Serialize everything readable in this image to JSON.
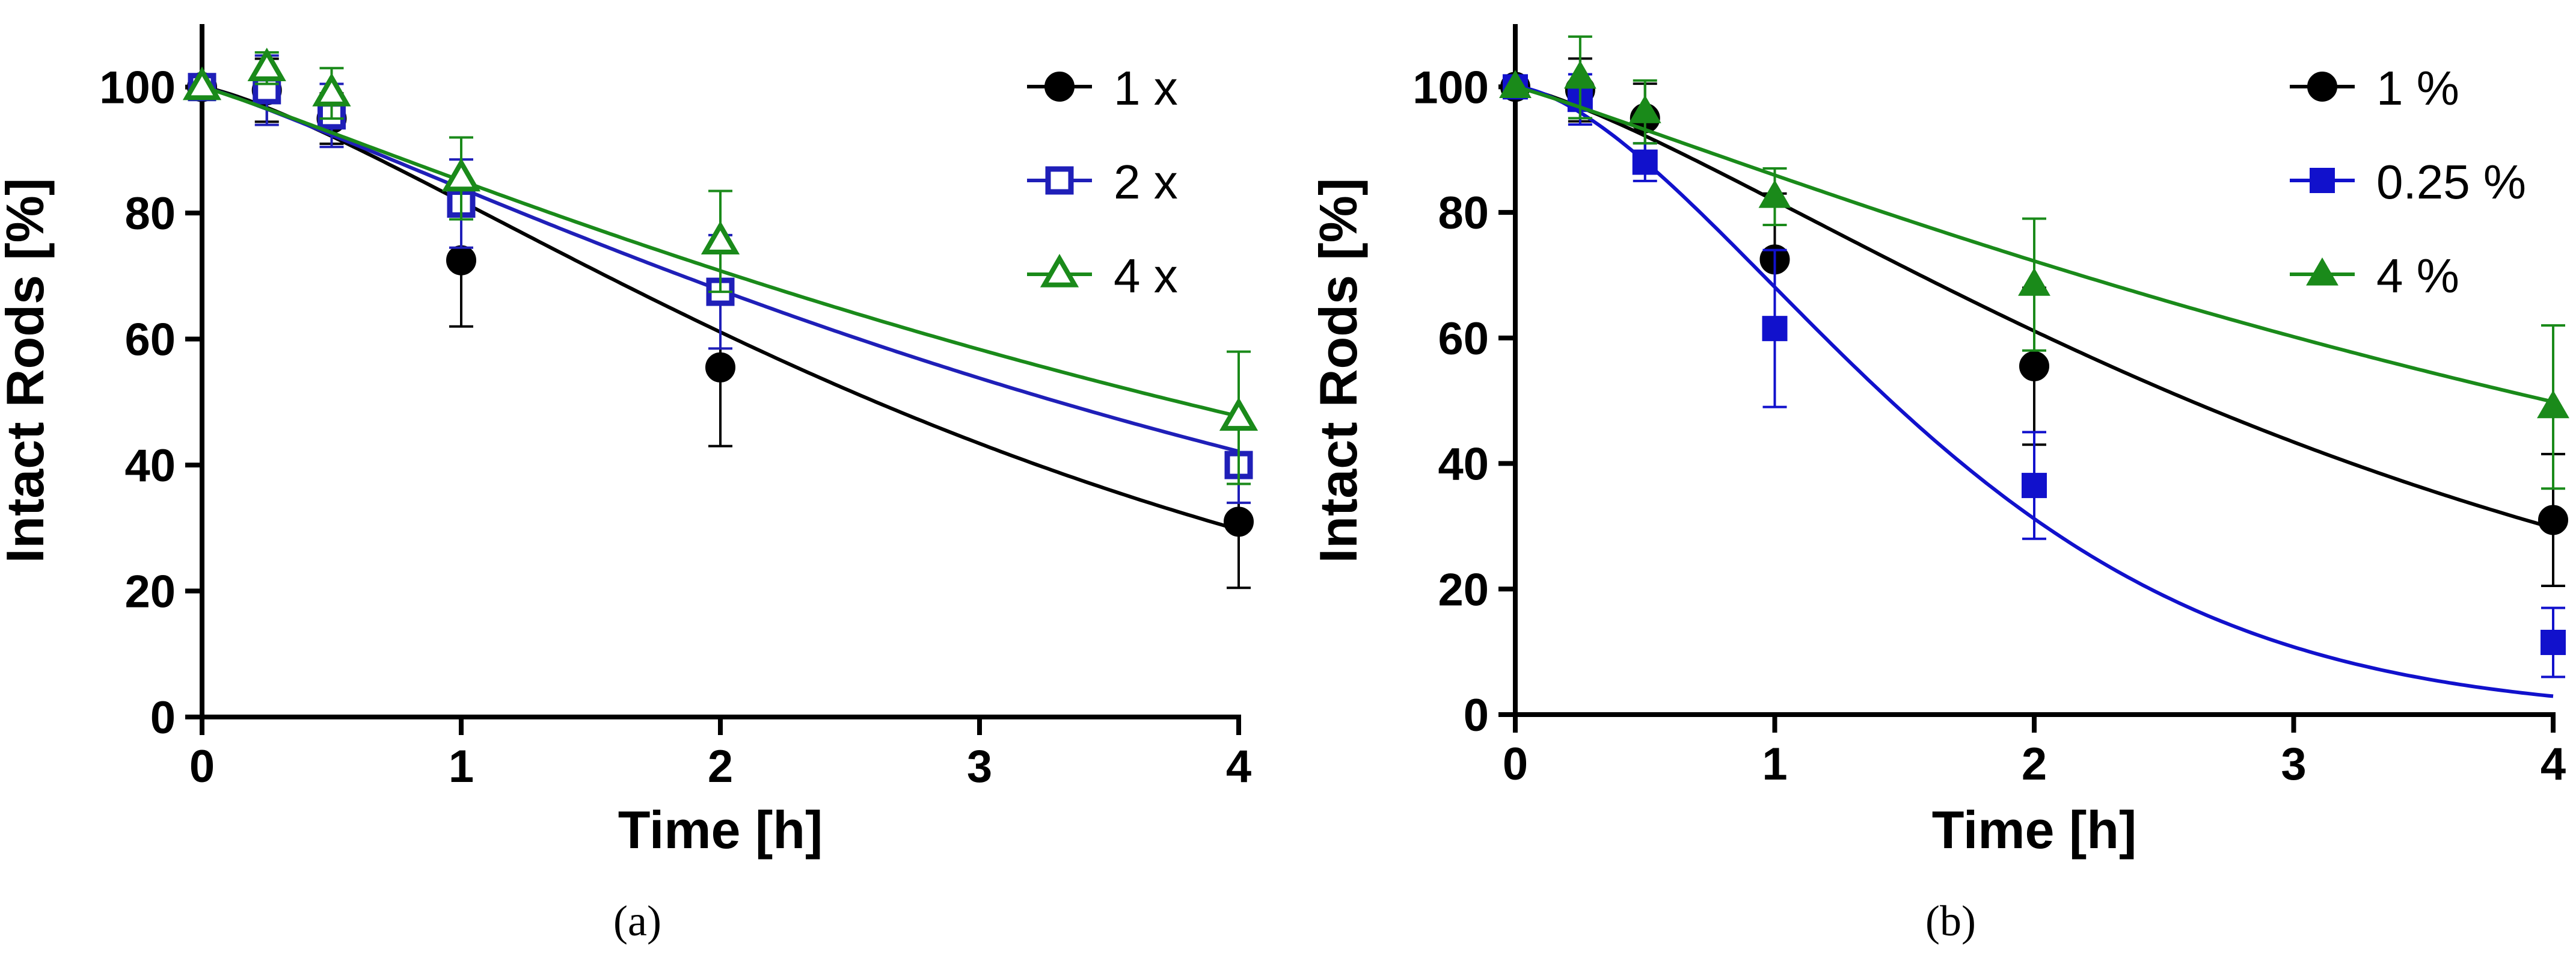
{
  "chart_data": [
    {
      "id": "a",
      "type": "scatter",
      "caption": "(a)",
      "xlabel": "Time [h]",
      "ylabel": "Intact Rods [%]",
      "xticks": [
        0,
        1,
        2,
        3,
        4
      ],
      "xtick_labels": [
        "0",
        "1",
        "2",
        "3",
        "4"
      ],
      "yticks": [
        0,
        20,
        40,
        60,
        80,
        100
      ],
      "ytick_labels": [
        "0",
        "20",
        "40",
        "60",
        "80",
        "100"
      ],
      "xlim": [
        0,
        4
      ],
      "ylim": [
        0,
        110
      ],
      "legend_position": "top-right",
      "series": [
        {
          "name": "1 x",
          "color": "#000000",
          "marker": "circle",
          "filled": true,
          "x": [
            0,
            0.25,
            0.5,
            1,
            2,
            4
          ],
          "y": [
            100,
            99.5,
            95,
            72.5,
            55.5,
            31
          ],
          "err": [
            0,
            5,
            4,
            10.5,
            12.5,
            10.5
          ],
          "fit_k": 0.29,
          "fit_n": 1.3
        },
        {
          "name": "2 x",
          "color": "#1f1fb8",
          "marker": "square",
          "filled": false,
          "x": [
            0,
            0.25,
            0.5,
            1,
            2,
            4
          ],
          "y": [
            100,
            99.5,
            95.5,
            81.5,
            67.5,
            40
          ],
          "err": [
            0,
            5.5,
            5,
            7,
            9,
            6
          ],
          "fit_k": 0.22,
          "fit_n": 1.15
        },
        {
          "name": "4 x",
          "color": "#1a8a1a",
          "marker": "triangle",
          "filled": false,
          "x": [
            0,
            0.25,
            0.5,
            1,
            2,
            4
          ],
          "y": [
            100,
            103,
            99,
            85.5,
            75.5,
            47.5
          ],
          "err": [
            0,
            2.5,
            4,
            6.5,
            8,
            10.5
          ],
          "fit_k": 0.19,
          "fit_n": 1.1
        }
      ]
    },
    {
      "id": "b",
      "type": "scatter",
      "caption": "(b)",
      "xlabel": "Time [h]",
      "ylabel": "Intact Rods [%]",
      "xticks": [
        0,
        1,
        2,
        3,
        4
      ],
      "xtick_labels": [
        "0",
        "1",
        "2",
        "3",
        "4"
      ],
      "yticks": [
        0,
        20,
        40,
        60,
        80,
        100
      ],
      "ytick_labels": [
        "0",
        "20",
        "40",
        "60",
        "80",
        "100"
      ],
      "xlim": [
        0,
        4
      ],
      "ylim": [
        0,
        110
      ],
      "legend_position": "top-right",
      "series": [
        {
          "name": "1 %",
          "color": "#000000",
          "marker": "circle",
          "filled": true,
          "x": [
            0,
            0.25,
            0.5,
            1,
            2,
            4
          ],
          "y": [
            100,
            99.5,
            95,
            72.5,
            55.5,
            31
          ],
          "err": [
            0,
            5,
            5.5,
            10.5,
            12.5,
            10.5
          ],
          "fit_k": 0.29,
          "fit_n": 1.3
        },
        {
          "name": "0.25 %",
          "color": "#1111cc",
          "marker": "square",
          "filled": true,
          "x": [
            0,
            0.25,
            0.5,
            1,
            2,
            4
          ],
          "y": [
            100,
            98,
            88,
            61.5,
            36.5,
            11.5
          ],
          "err": [
            0,
            4,
            3,
            12.5,
            8.5,
            5.5
          ],
          "fit_k": 0.55,
          "fit_n": 1.6
        },
        {
          "name": "4 %",
          "color": "#1a8a1a",
          "marker": "triangle",
          "filled": true,
          "x": [
            0,
            0.25,
            0.5,
            1,
            2,
            4
          ],
          "y": [
            100,
            101.5,
            96,
            82.5,
            68.5,
            49
          ],
          "err": [
            0,
            6.5,
            5,
            4.5,
            10.5,
            13
          ],
          "fit_k": 0.18,
          "fit_n": 1.1
        }
      ]
    }
  ]
}
